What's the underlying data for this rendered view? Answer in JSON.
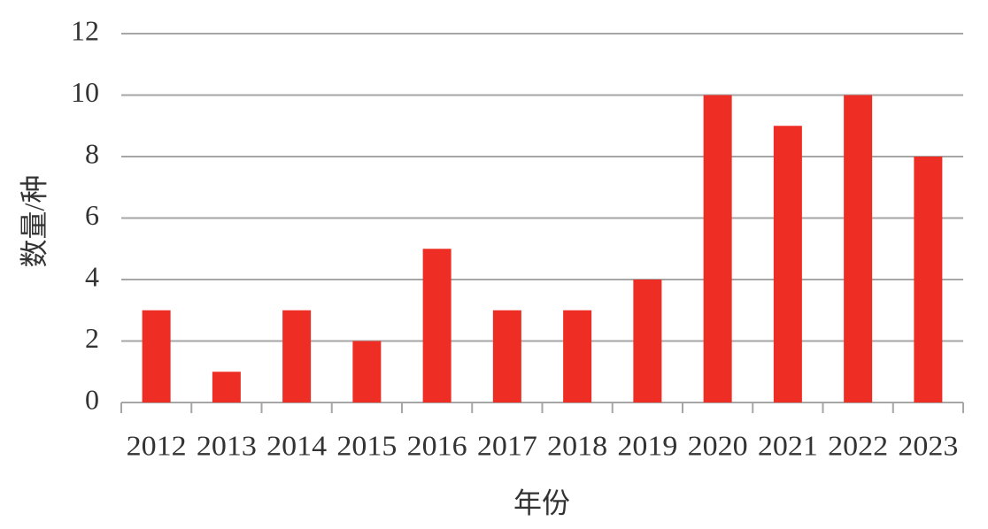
{
  "chart_data": {
    "type": "bar",
    "x_label": "年份",
    "y_label": "数量/种",
    "categories": [
      "2012",
      "2013",
      "2014",
      "2015",
      "2016",
      "2017",
      "2018",
      "2019",
      "2020",
      "2021",
      "2022",
      "2023"
    ],
    "values": [
      3,
      1,
      3,
      2,
      5,
      3,
      3,
      4,
      10,
      9,
      10,
      8
    ],
    "color": "#ee2e24",
    "ylim": [
      0,
      12
    ],
    "yticks": [
      0,
      2,
      4,
      6,
      8,
      10,
      12
    ],
    "grid": true
  }
}
